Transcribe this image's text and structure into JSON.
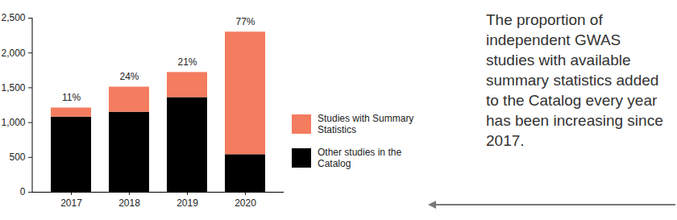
{
  "chart_data": {
    "type": "bar",
    "stacked": true,
    "categories": [
      "2017",
      "2018",
      "2019",
      "2020"
    ],
    "series": [
      {
        "name": "Studies with Summary Statistics",
        "color": "#f47c5f",
        "values": [
          130,
          360,
          360,
          1760
        ]
      },
      {
        "name": "Other studies in the Catalog",
        "color": "#000000",
        "values": [
          1080,
          1150,
          1360,
          540
        ]
      }
    ],
    "annotations": [
      {
        "category": "2017",
        "text": "11%"
      },
      {
        "category": "2018",
        "text": "24%"
      },
      {
        "category": "2019",
        "text": "21%"
      },
      {
        "category": "2020",
        "text": "77%"
      }
    ],
    "ylim": [
      0,
      2500
    ],
    "yticks": [
      0,
      500,
      1000,
      1500,
      2000,
      2500
    ],
    "grid": false,
    "legend": "right"
  },
  "side_text": "The proportion of independent GWAS studies with available summary statistics added to the Catalog every year has been increasing since 2017."
}
